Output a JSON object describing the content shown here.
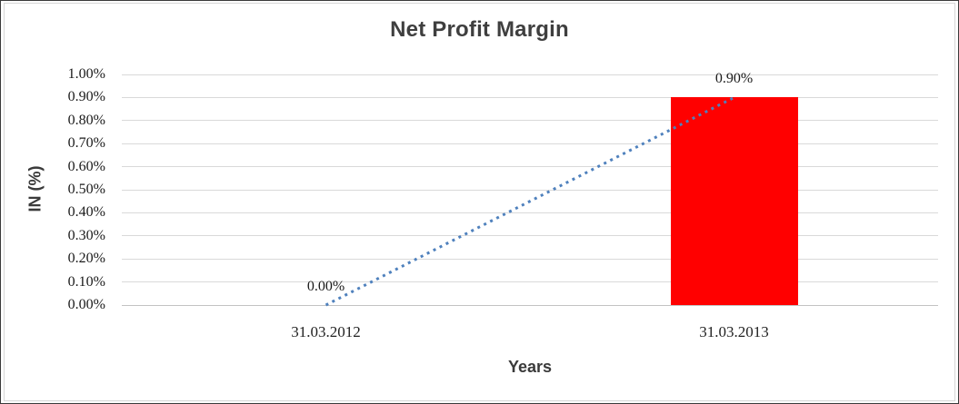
{
  "chart_data": {
    "type": "bar",
    "title": "Net Profit Margin",
    "xlabel": "Years",
    "ylabel": "IN (%)",
    "categories": [
      "31.03.2012",
      "31.03.2013"
    ],
    "values": [
      0.0,
      0.9
    ],
    "data_labels": [
      "0.00%",
      "0.90%"
    ],
    "y_ticks_top_to_bottom": [
      "1.00%",
      "0.90%",
      "0.80%",
      "0.70%",
      "0.60%",
      "0.50%",
      "0.40%",
      "0.30%",
      "0.20%",
      "0.10%",
      "0.00%"
    ],
    "ylim": [
      0,
      1.0
    ],
    "grid": "horizontal",
    "legend": "none",
    "bar_color": "#ff0000",
    "gridline_color": "#d9d9d9",
    "axis_line_color": "#c3c3c3",
    "title_color": "#3f3f3f",
    "trendline": {
      "type": "linear",
      "style": "dotted",
      "color": "#4f81bd",
      "from_value": 0.0,
      "to_value": 0.9
    }
  }
}
